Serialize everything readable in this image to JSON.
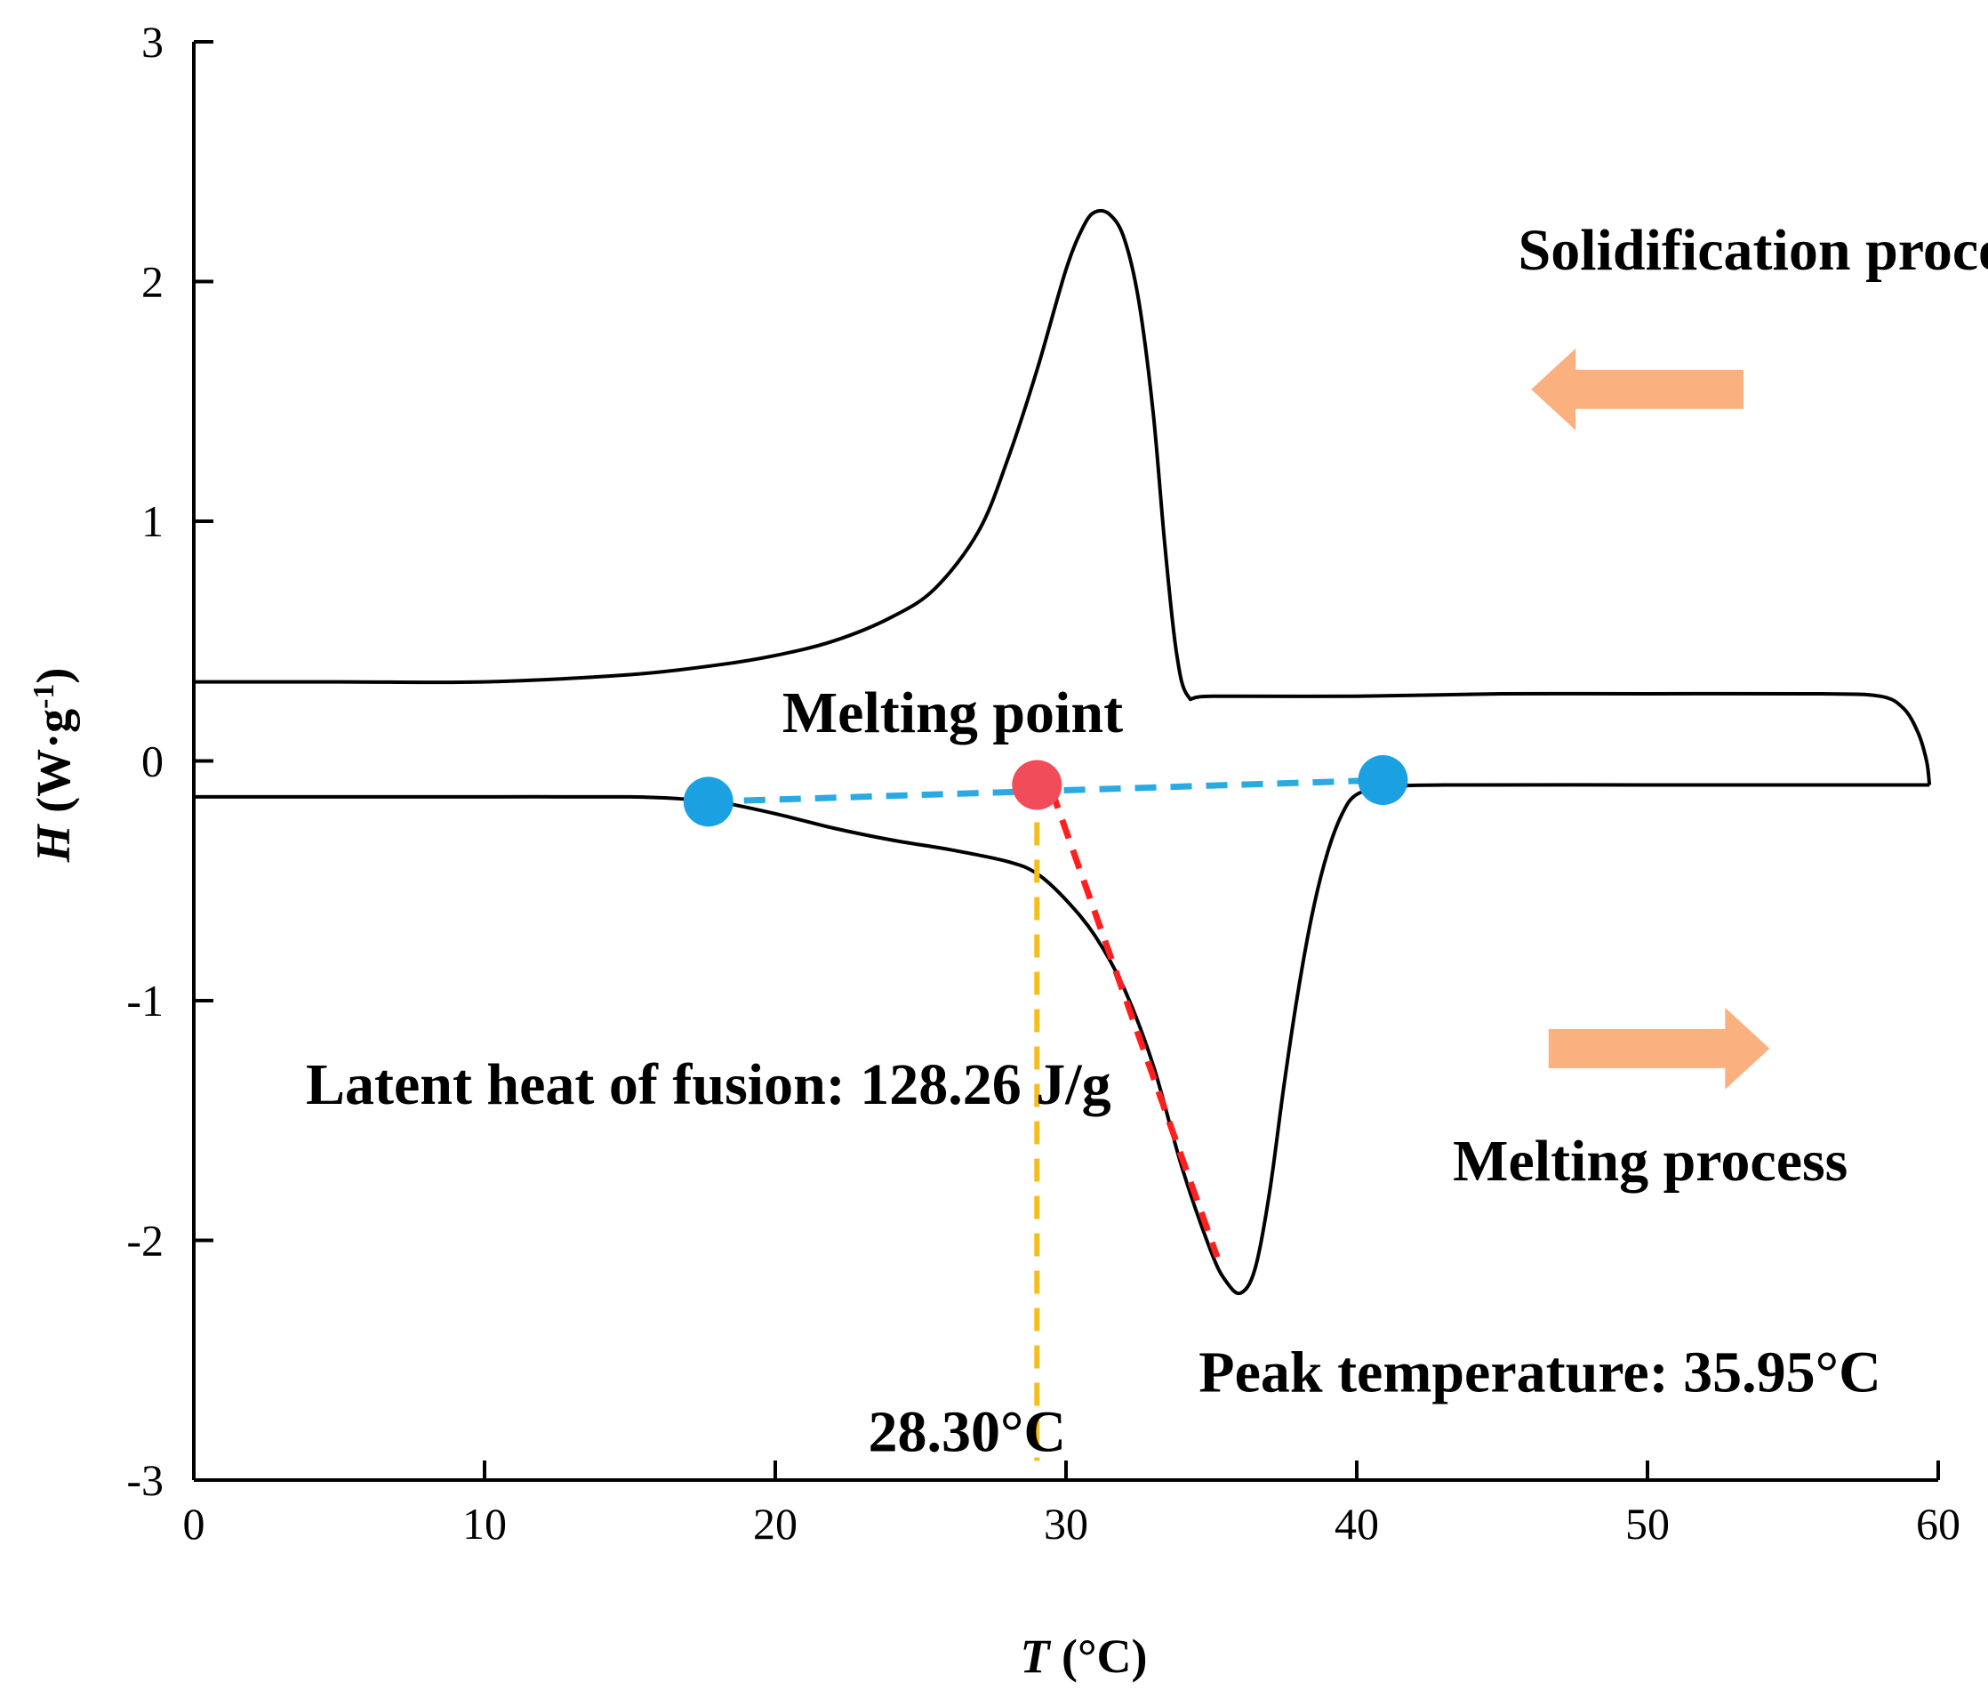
{
  "chart_data": {
    "type": "line",
    "title": "",
    "xlabel": {
      "symbol": "T",
      "unit": " (°C)"
    },
    "ylabel": {
      "symbol": "H",
      "unit_pre": " (W·g",
      "unit_sup": "-1",
      "unit_post": ")"
    },
    "xlim": [
      0,
      60
    ],
    "ylim": [
      -3,
      3
    ],
    "x_ticks": [
      0,
      10,
      20,
      30,
      40,
      50,
      60
    ],
    "y_ticks": [
      -3,
      -2,
      -1,
      0,
      1,
      2,
      3
    ],
    "grid": false,
    "series": [
      {
        "color": "#000000",
        "points": [
          [
            0,
            0.33
          ],
          [
            5,
            0.33
          ],
          [
            10,
            0.33
          ],
          [
            15,
            0.36
          ],
          [
            18,
            0.4
          ],
          [
            20,
            0.44
          ],
          [
            22,
            0.5
          ],
          [
            24,
            0.6
          ],
          [
            25.5,
            0.72
          ],
          [
            27,
            0.96
          ],
          [
            28,
            1.26
          ],
          [
            29,
            1.63
          ],
          [
            30,
            2.05
          ],
          [
            30.6,
            2.23
          ],
          [
            31,
            2.29
          ],
          [
            31.5,
            2.28
          ],
          [
            32,
            2.18
          ],
          [
            32.5,
            1.92
          ],
          [
            33,
            1.45
          ],
          [
            33.4,
            0.9
          ],
          [
            33.8,
            0.45
          ],
          [
            34.2,
            0.27
          ],
          [
            35,
            0.27
          ],
          [
            40,
            0.27
          ],
          [
            45,
            0.28
          ],
          [
            50,
            0.28
          ],
          [
            56,
            0.28
          ],
          [
            58,
            0.27
          ],
          [
            58.8,
            0.22
          ],
          [
            59.3,
            0.12
          ],
          [
            59.6,
            0.0
          ],
          [
            59.7,
            -0.1
          ]
        ]
      },
      {
        "color": "#000000",
        "points": [
          [
            0,
            -0.15
          ],
          [
            5,
            -0.15
          ],
          [
            10,
            -0.15
          ],
          [
            15,
            -0.15
          ],
          [
            17,
            -0.16
          ],
          [
            18,
            -0.17
          ],
          [
            20,
            -0.22
          ],
          [
            22,
            -0.28
          ],
          [
            24,
            -0.33
          ],
          [
            26,
            -0.37
          ],
          [
            28,
            -0.42
          ],
          [
            29,
            -0.47
          ],
          [
            30,
            -0.58
          ],
          [
            31,
            -0.73
          ],
          [
            32,
            -0.95
          ],
          [
            33,
            -1.27
          ],
          [
            34,
            -1.7
          ],
          [
            35,
            -2.05
          ],
          [
            35.5,
            -2.17
          ],
          [
            36,
            -2.22
          ],
          [
            36.5,
            -2.12
          ],
          [
            37,
            -1.8
          ],
          [
            37.5,
            -1.35
          ],
          [
            38,
            -0.95
          ],
          [
            38.5,
            -0.62
          ],
          [
            39,
            -0.38
          ],
          [
            39.5,
            -0.22
          ],
          [
            40,
            -0.14
          ],
          [
            41,
            -0.11
          ],
          [
            43,
            -0.1
          ],
          [
            50,
            -0.1
          ],
          [
            56,
            -0.1
          ],
          [
            59.7,
            -0.1
          ]
        ]
      }
    ],
    "guides": {
      "baseline": {
        "color": "#29abe2",
        "from": [
          17.7,
          -0.17
        ],
        "to": [
          40.9,
          -0.08
        ]
      },
      "tangent": {
        "color": "#ff1f1f",
        "from": [
          29.5,
          -0.12
        ],
        "to": [
          35.2,
          -2.07
        ]
      },
      "onset_drop": {
        "color": "#f5be1f",
        "from": [
          29.0,
          -0.1
        ],
        "to": [
          29.0,
          -2.92
        ]
      }
    },
    "markers": [
      {
        "x": 17.7,
        "y": -0.17,
        "color": "#1ba1e2"
      },
      {
        "x": 40.9,
        "y": -0.08,
        "color": "#1ba1e2"
      },
      {
        "x": 29.0,
        "y": -0.1,
        "color": "#f04c5a"
      }
    ],
    "arrows": [
      {
        "direction": "left",
        "color": "#fbb07f",
        "x_from": 53.3,
        "x_to": 46.0,
        "y": 1.55
      },
      {
        "direction": "right",
        "color": "#fbb07f",
        "x_from": 46.6,
        "x_to": 54.2,
        "y": -1.2
      }
    ],
    "annotations": [
      {
        "text": "Solidification process",
        "x": 54.7,
        "y": 2.05
      },
      {
        "text": "Melting point",
        "x": 26.1,
        "y": 0.12
      },
      {
        "text": "Latent heat of fusion: 128.26 J/g",
        "x": 17.7,
        "y": -1.43
      },
      {
        "text": "Melting process",
        "x": 50.1,
        "y": -1.75
      },
      {
        "text": "Peak temperature: 35.95°C",
        "x": 46.3,
        "y": -2.63
      },
      {
        "text": "28.30°C",
        "x": 26.6,
        "y": -2.88
      }
    ]
  }
}
